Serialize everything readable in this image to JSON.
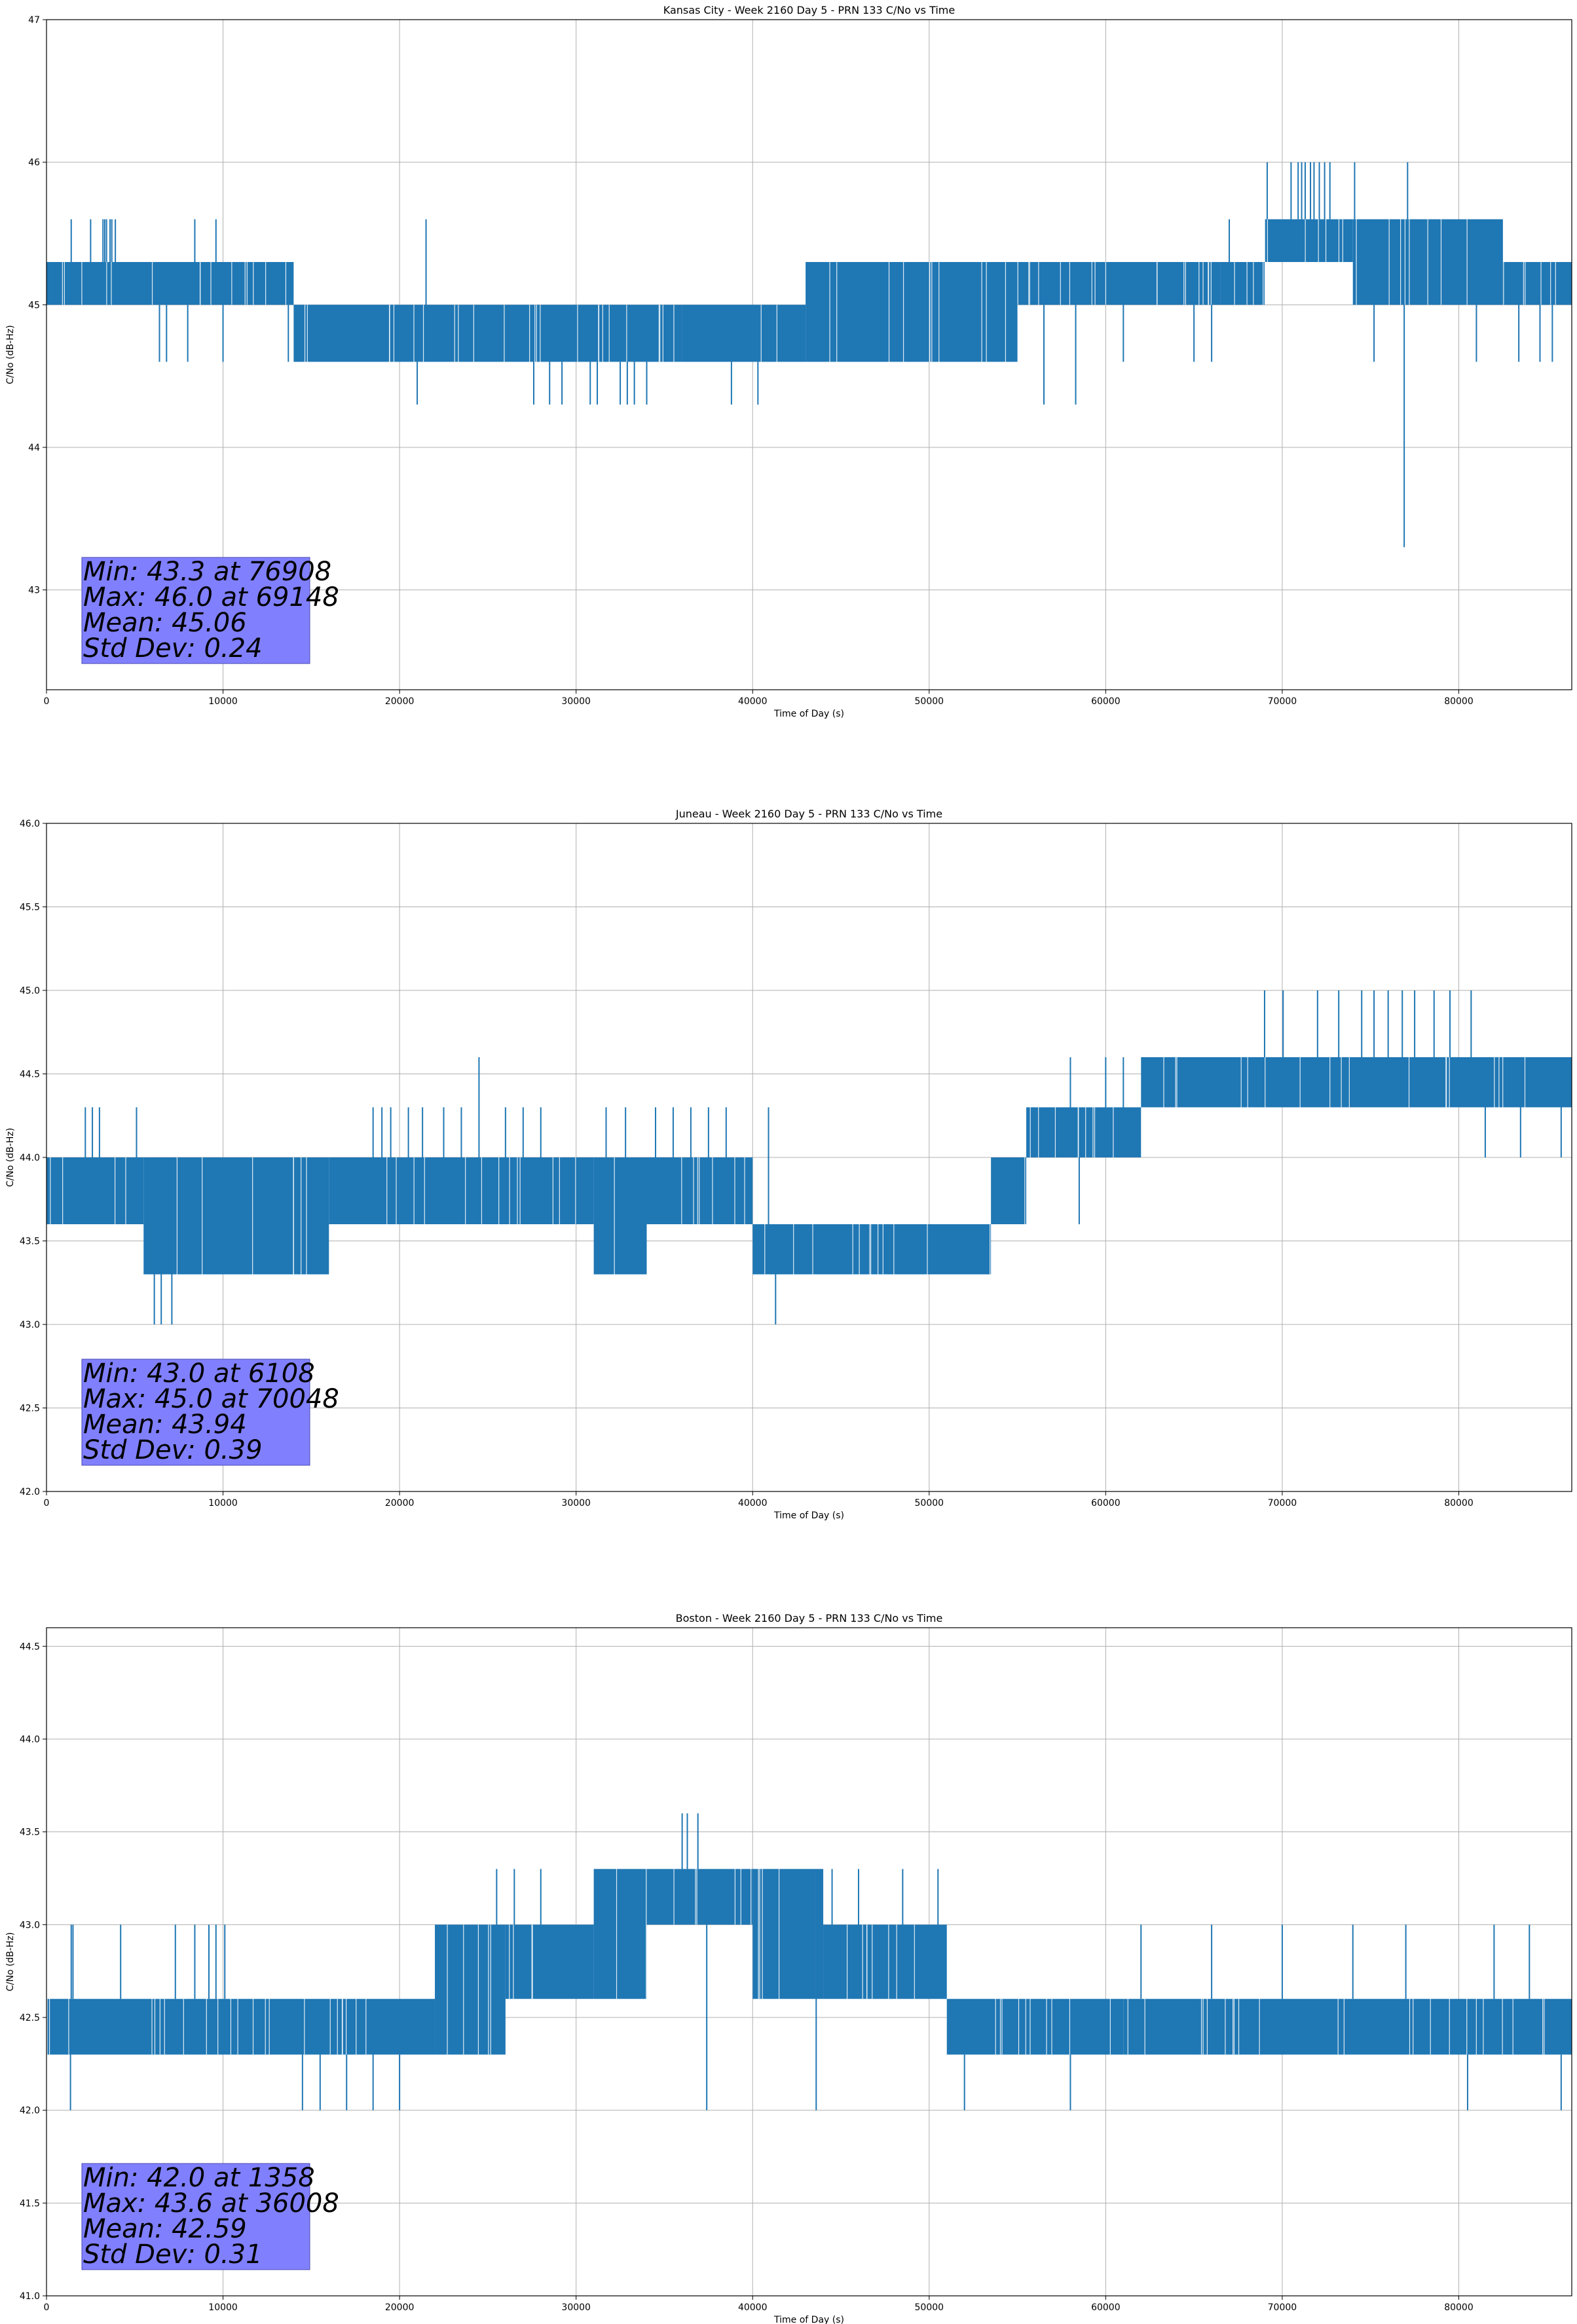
{
  "chart_data": [
    {
      "type": "line",
      "title": "Kansas City - Week 2160 Day 5 - PRN 133 C/No vs Time",
      "xlabel": "Time of Day (s)",
      "ylabel": "C/No (dB-Hz)",
      "xlim": [
        0,
        86400
      ],
      "ylim": [
        42.3,
        47.0
      ],
      "xticks": [
        0,
        10000,
        20000,
        30000,
        40000,
        50000,
        60000,
        70000,
        80000
      ],
      "yticks": [
        43,
        44,
        45,
        46,
        47
      ],
      "grid": true,
      "color": "#1f77b4",
      "stats_box_color": "#8080ff",
      "stats": [
        "Min: 43.3 at 76908",
        "Max: 46.0 at 69148",
        "Mean: 45.06",
        "Std Dev: 0.24"
      ],
      "series": [
        {
          "segments": [
            {
              "x_start": 0,
              "x_end": 14000,
              "lo": 45.0,
              "hi": 45.3
            },
            {
              "x_start": 14000,
              "x_end": 36000,
              "lo": 44.6,
              "hi": 45.0
            },
            {
              "x_start": 36000,
              "x_end": 43000,
              "lo": 44.6,
              "hi": 45.0
            },
            {
              "x_start": 43000,
              "x_end": 55000,
              "lo": 44.6,
              "hi": 45.3
            },
            {
              "x_start": 55000,
              "x_end": 66500,
              "lo": 45.0,
              "hi": 45.3
            },
            {
              "x_start": 66500,
              "x_end": 69000,
              "lo": 45.0,
              "hi": 45.3
            },
            {
              "x_start": 69000,
              "x_end": 74000,
              "lo": 45.3,
              "hi": 45.6
            },
            {
              "x_start": 74000,
              "x_end": 82500,
              "lo": 45.0,
              "hi": 45.6
            },
            {
              "x_start": 82500,
              "x_end": 86400,
              "lo": 45.0,
              "hi": 45.3
            }
          ],
          "spikes": [
            {
              "x": 1400,
              "y": 45.6
            },
            {
              "x": 2500,
              "y": 45.6
            },
            {
              "x": 3200,
              "y": 45.6
            },
            {
              "x": 3300,
              "y": 45.6
            },
            {
              "x": 3400,
              "y": 45.6
            },
            {
              "x": 3600,
              "y": 45.6
            },
            {
              "x": 3700,
              "y": 45.6
            },
            {
              "x": 3900,
              "y": 45.6
            },
            {
              "x": 6400,
              "y": 44.6
            },
            {
              "x": 6800,
              "y": 44.6
            },
            {
              "x": 8000,
              "y": 44.6
            },
            {
              "x": 8400,
              "y": 45.6
            },
            {
              "x": 9600,
              "y": 45.6
            },
            {
              "x": 10000,
              "y": 44.6
            },
            {
              "x": 13700,
              "y": 44.6
            },
            {
              "x": 21000,
              "y": 44.3
            },
            {
              "x": 21500,
              "y": 45.6
            },
            {
              "x": 27600,
              "y": 44.3
            },
            {
              "x": 28500,
              "y": 44.3
            },
            {
              "x": 29200,
              "y": 44.3
            },
            {
              "x": 30800,
              "y": 44.3
            },
            {
              "x": 31200,
              "y": 44.3
            },
            {
              "x": 32500,
              "y": 44.3
            },
            {
              "x": 32900,
              "y": 44.3
            },
            {
              "x": 33300,
              "y": 44.3
            },
            {
              "x": 34000,
              "y": 44.3
            },
            {
              "x": 38800,
              "y": 44.3
            },
            {
              "x": 40300,
              "y": 44.3
            },
            {
              "x": 56500,
              "y": 44.3
            },
            {
              "x": 58300,
              "y": 44.3
            },
            {
              "x": 61000,
              "y": 44.6
            },
            {
              "x": 65000,
              "y": 44.6
            },
            {
              "x": 66000,
              "y": 44.6
            },
            {
              "x": 67000,
              "y": 45.6
            },
            {
              "x": 69148,
              "y": 46.0
            },
            {
              "x": 70500,
              "y": 46.0
            },
            {
              "x": 70900,
              "y": 46.0
            },
            {
              "x": 71100,
              "y": 46.0
            },
            {
              "x": 71300,
              "y": 46.0
            },
            {
              "x": 71600,
              "y": 46.0
            },
            {
              "x": 71800,
              "y": 46.0
            },
            {
              "x": 72100,
              "y": 46.0
            },
            {
              "x": 72400,
              "y": 46.0
            },
            {
              "x": 72700,
              "y": 46.0
            },
            {
              "x": 74100,
              "y": 46.0
            },
            {
              "x": 75200,
              "y": 44.6
            },
            {
              "x": 76908,
              "y": 43.3
            },
            {
              "x": 77100,
              "y": 46.0
            },
            {
              "x": 81000,
              "y": 44.6
            },
            {
              "x": 83400,
              "y": 44.6
            },
            {
              "x": 84600,
              "y": 44.6
            },
            {
              "x": 85300,
              "y": 44.6
            }
          ]
        }
      ]
    },
    {
      "type": "line",
      "title": "Juneau - Week 2160 Day 5 - PRN 133 C/No vs Time",
      "xlabel": "Time of Day (s)",
      "ylabel": "C/No (dB-Hz)",
      "xlim": [
        0,
        86400
      ],
      "ylim": [
        42.0,
        46.0
      ],
      "xticks": [
        0,
        10000,
        20000,
        30000,
        40000,
        50000,
        60000,
        70000,
        80000
      ],
      "yticks": [
        42.0,
        42.5,
        43.0,
        43.5,
        44.0,
        44.5,
        45.0,
        45.5,
        46.0
      ],
      "grid": true,
      "color": "#1f77b4",
      "stats_box_color": "#8080ff",
      "stats": [
        "Min: 43.0 at 6108",
        "Max: 45.0 at 70048",
        "Mean: 43.94",
        "Std Dev: 0.39"
      ],
      "series": [
        {
          "segments": [
            {
              "x_start": 0,
              "x_end": 5500,
              "lo": 43.6,
              "hi": 44.0
            },
            {
              "x_start": 5500,
              "x_end": 16000,
              "lo": 43.3,
              "hi": 44.0
            },
            {
              "x_start": 16000,
              "x_end": 31000,
              "lo": 43.6,
              "hi": 44.0
            },
            {
              "x_start": 31000,
              "x_end": 34000,
              "lo": 43.3,
              "hi": 44.0
            },
            {
              "x_start": 34000,
              "x_end": 40000,
              "lo": 43.6,
              "hi": 44.0
            },
            {
              "x_start": 40000,
              "x_end": 53500,
              "lo": 43.3,
              "hi": 43.6
            },
            {
              "x_start": 53500,
              "x_end": 55500,
              "lo": 43.6,
              "hi": 44.0
            },
            {
              "x_start": 55500,
              "x_end": 62000,
              "lo": 44.0,
              "hi": 44.3
            },
            {
              "x_start": 62000,
              "x_end": 86400,
              "lo": 44.3,
              "hi": 44.6
            }
          ],
          "spikes": [
            {
              "x": 2200,
              "y": 44.3
            },
            {
              "x": 2600,
              "y": 44.3
            },
            {
              "x": 3000,
              "y": 44.3
            },
            {
              "x": 5100,
              "y": 44.3
            },
            {
              "x": 6108,
              "y": 43.0
            },
            {
              "x": 6500,
              "y": 43.0
            },
            {
              "x": 7100,
              "y": 43.0
            },
            {
              "x": 18500,
              "y": 44.3
            },
            {
              "x": 19000,
              "y": 44.3
            },
            {
              "x": 19500,
              "y": 44.3
            },
            {
              "x": 20500,
              "y": 44.3
            },
            {
              "x": 21300,
              "y": 44.3
            },
            {
              "x": 22500,
              "y": 44.3
            },
            {
              "x": 23500,
              "y": 44.3
            },
            {
              "x": 24500,
              "y": 44.6
            },
            {
              "x": 26000,
              "y": 44.3
            },
            {
              "x": 27000,
              "y": 44.3
            },
            {
              "x": 28000,
              "y": 44.3
            },
            {
              "x": 31700,
              "y": 44.3
            },
            {
              "x": 32800,
              "y": 44.3
            },
            {
              "x": 34500,
              "y": 44.3
            },
            {
              "x": 35500,
              "y": 44.3
            },
            {
              "x": 36500,
              "y": 44.3
            },
            {
              "x": 37500,
              "y": 44.3
            },
            {
              "x": 38500,
              "y": 44.3
            },
            {
              "x": 40900,
              "y": 44.3
            },
            {
              "x": 41300,
              "y": 43.0
            },
            {
              "x": 58000,
              "y": 44.6
            },
            {
              "x": 58500,
              "y": 43.6
            },
            {
              "x": 60000,
              "y": 44.6
            },
            {
              "x": 61000,
              "y": 44.6
            },
            {
              "x": 69000,
              "y": 45.0
            },
            {
              "x": 70048,
              "y": 45.0
            },
            {
              "x": 72000,
              "y": 45.0
            },
            {
              "x": 73200,
              "y": 45.0
            },
            {
              "x": 74500,
              "y": 45.0
            },
            {
              "x": 75200,
              "y": 45.0
            },
            {
              "x": 76000,
              "y": 45.0
            },
            {
              "x": 76800,
              "y": 45.0
            },
            {
              "x": 77500,
              "y": 45.0
            },
            {
              "x": 78600,
              "y": 45.0
            },
            {
              "x": 79500,
              "y": 45.0
            },
            {
              "x": 80700,
              "y": 45.0
            },
            {
              "x": 81500,
              "y": 44.0
            },
            {
              "x": 83500,
              "y": 44.0
            },
            {
              "x": 85800,
              "y": 44.0
            }
          ]
        }
      ]
    },
    {
      "type": "line",
      "title": "Boston - Week 2160 Day 5 - PRN 133 C/No vs Time",
      "xlabel": "Time of Day (s)",
      "ylabel": "C/No (dB-Hz)",
      "xlim": [
        0,
        86400
      ],
      "ylim": [
        41.0,
        44.6
      ],
      "xticks": [
        0,
        10000,
        20000,
        30000,
        40000,
        50000,
        60000,
        70000,
        80000
      ],
      "yticks": [
        41.0,
        41.5,
        42.0,
        42.5,
        43.0,
        43.5,
        44.0,
        44.5
      ],
      "grid": true,
      "color": "#1f77b4",
      "stats_box_color": "#8080ff",
      "stats": [
        "Min: 42.0 at 1358",
        "Max: 43.6 at 36008",
        "Mean: 42.59",
        "Std Dev: 0.31"
      ],
      "series": [
        {
          "segments": [
            {
              "x_start": 0,
              "x_end": 22000,
              "lo": 42.3,
              "hi": 42.6
            },
            {
              "x_start": 22000,
              "x_end": 26000,
              "lo": 42.3,
              "hi": 43.0
            },
            {
              "x_start": 26000,
              "x_end": 31000,
              "lo": 42.6,
              "hi": 43.0
            },
            {
              "x_start": 31000,
              "x_end": 34000,
              "lo": 42.6,
              "hi": 43.3
            },
            {
              "x_start": 34000,
              "x_end": 40000,
              "lo": 43.0,
              "hi": 43.3
            },
            {
              "x_start": 40000,
              "x_end": 44000,
              "lo": 42.6,
              "hi": 43.3
            },
            {
              "x_start": 44000,
              "x_end": 51000,
              "lo": 42.6,
              "hi": 43.0
            },
            {
              "x_start": 51000,
              "x_end": 61000,
              "lo": 42.3,
              "hi": 42.6
            },
            {
              "x_start": 61000,
              "x_end": 86400,
              "lo": 42.3,
              "hi": 42.6
            }
          ],
          "spikes": [
            {
              "x": 1358,
              "y": 42.0
            },
            {
              "x": 1400,
              "y": 43.0
            },
            {
              "x": 1500,
              "y": 43.0
            },
            {
              "x": 4200,
              "y": 43.0
            },
            {
              "x": 7300,
              "y": 43.0
            },
            {
              "x": 8400,
              "y": 43.0
            },
            {
              "x": 9200,
              "y": 43.0
            },
            {
              "x": 9600,
              "y": 43.0
            },
            {
              "x": 10100,
              "y": 43.0
            },
            {
              "x": 14500,
              "y": 42.0
            },
            {
              "x": 15500,
              "y": 42.0
            },
            {
              "x": 17000,
              "y": 42.0
            },
            {
              "x": 18500,
              "y": 42.0
            },
            {
              "x": 20000,
              "y": 42.0
            },
            {
              "x": 25500,
              "y": 43.3
            },
            {
              "x": 26500,
              "y": 43.3
            },
            {
              "x": 28000,
              "y": 43.3
            },
            {
              "x": 36008,
              "y": 43.6
            },
            {
              "x": 36300,
              "y": 43.6
            },
            {
              "x": 36900,
              "y": 43.6
            },
            {
              "x": 37400,
              "y": 42.0
            },
            {
              "x": 43500,
              "y": 43.3
            },
            {
              "x": 44500,
              "y": 43.3
            },
            {
              "x": 46000,
              "y": 43.3
            },
            {
              "x": 48500,
              "y": 43.3
            },
            {
              "x": 50500,
              "y": 43.3
            },
            {
              "x": 43600,
              "y": 42.0
            },
            {
              "x": 52000,
              "y": 42.0
            },
            {
              "x": 58000,
              "y": 42.0
            },
            {
              "x": 62000,
              "y": 43.0
            },
            {
              "x": 66000,
              "y": 43.0
            },
            {
              "x": 70000,
              "y": 43.0
            },
            {
              "x": 74000,
              "y": 43.0
            },
            {
              "x": 77000,
              "y": 43.0
            },
            {
              "x": 80500,
              "y": 42.0
            },
            {
              "x": 82000,
              "y": 43.0
            },
            {
              "x": 84000,
              "y": 43.0
            },
            {
              "x": 85800,
              "y": 42.0
            }
          ]
        }
      ]
    }
  ]
}
